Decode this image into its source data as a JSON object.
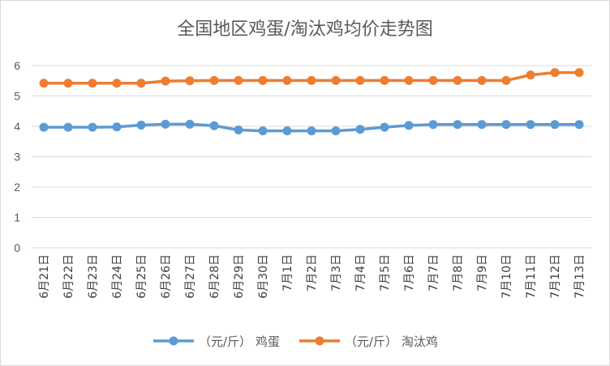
{
  "chart_data": {
    "type": "line",
    "title": "全国地区鸡蛋/淘汰鸡均价走势图",
    "xlabel": "",
    "ylabel": "",
    "ylim": [
      0,
      6
    ],
    "yticks": [
      0,
      1,
      2,
      3,
      4,
      5,
      6
    ],
    "grid": true,
    "legend_position": "bottom",
    "categories": [
      "6月21日",
      "6月22日",
      "6月23日",
      "6月24日",
      "6月25日",
      "6月26日",
      "6月27日",
      "6月28日",
      "6月29日",
      "6月30日",
      "7月1日",
      "7月2日",
      "7月3日",
      "7月4日",
      "7月5日",
      "7月6日",
      "7月7日",
      "7月8日",
      "7月9日",
      "7月10日",
      "7月11日",
      "7月12日",
      "7月13日"
    ],
    "series": [
      {
        "name": "（元/斤） 鸡蛋",
        "color": "#5b9bd5",
        "values": [
          3.97,
          3.97,
          3.97,
          3.98,
          4.04,
          4.07,
          4.07,
          4.02,
          3.88,
          3.85,
          3.85,
          3.85,
          3.85,
          3.9,
          3.97,
          4.03,
          4.06,
          4.06,
          4.06,
          4.06,
          4.06,
          4.06,
          4.06
        ]
      },
      {
        "name": "（元/斤） 淘汰鸡",
        "color": "#ed7d31",
        "values": [
          5.42,
          5.42,
          5.42,
          5.42,
          5.42,
          5.49,
          5.5,
          5.51,
          5.51,
          5.51,
          5.51,
          5.51,
          5.51,
          5.51,
          5.51,
          5.51,
          5.51,
          5.51,
          5.51,
          5.51,
          5.69,
          5.77,
          5.77
        ]
      }
    ]
  }
}
